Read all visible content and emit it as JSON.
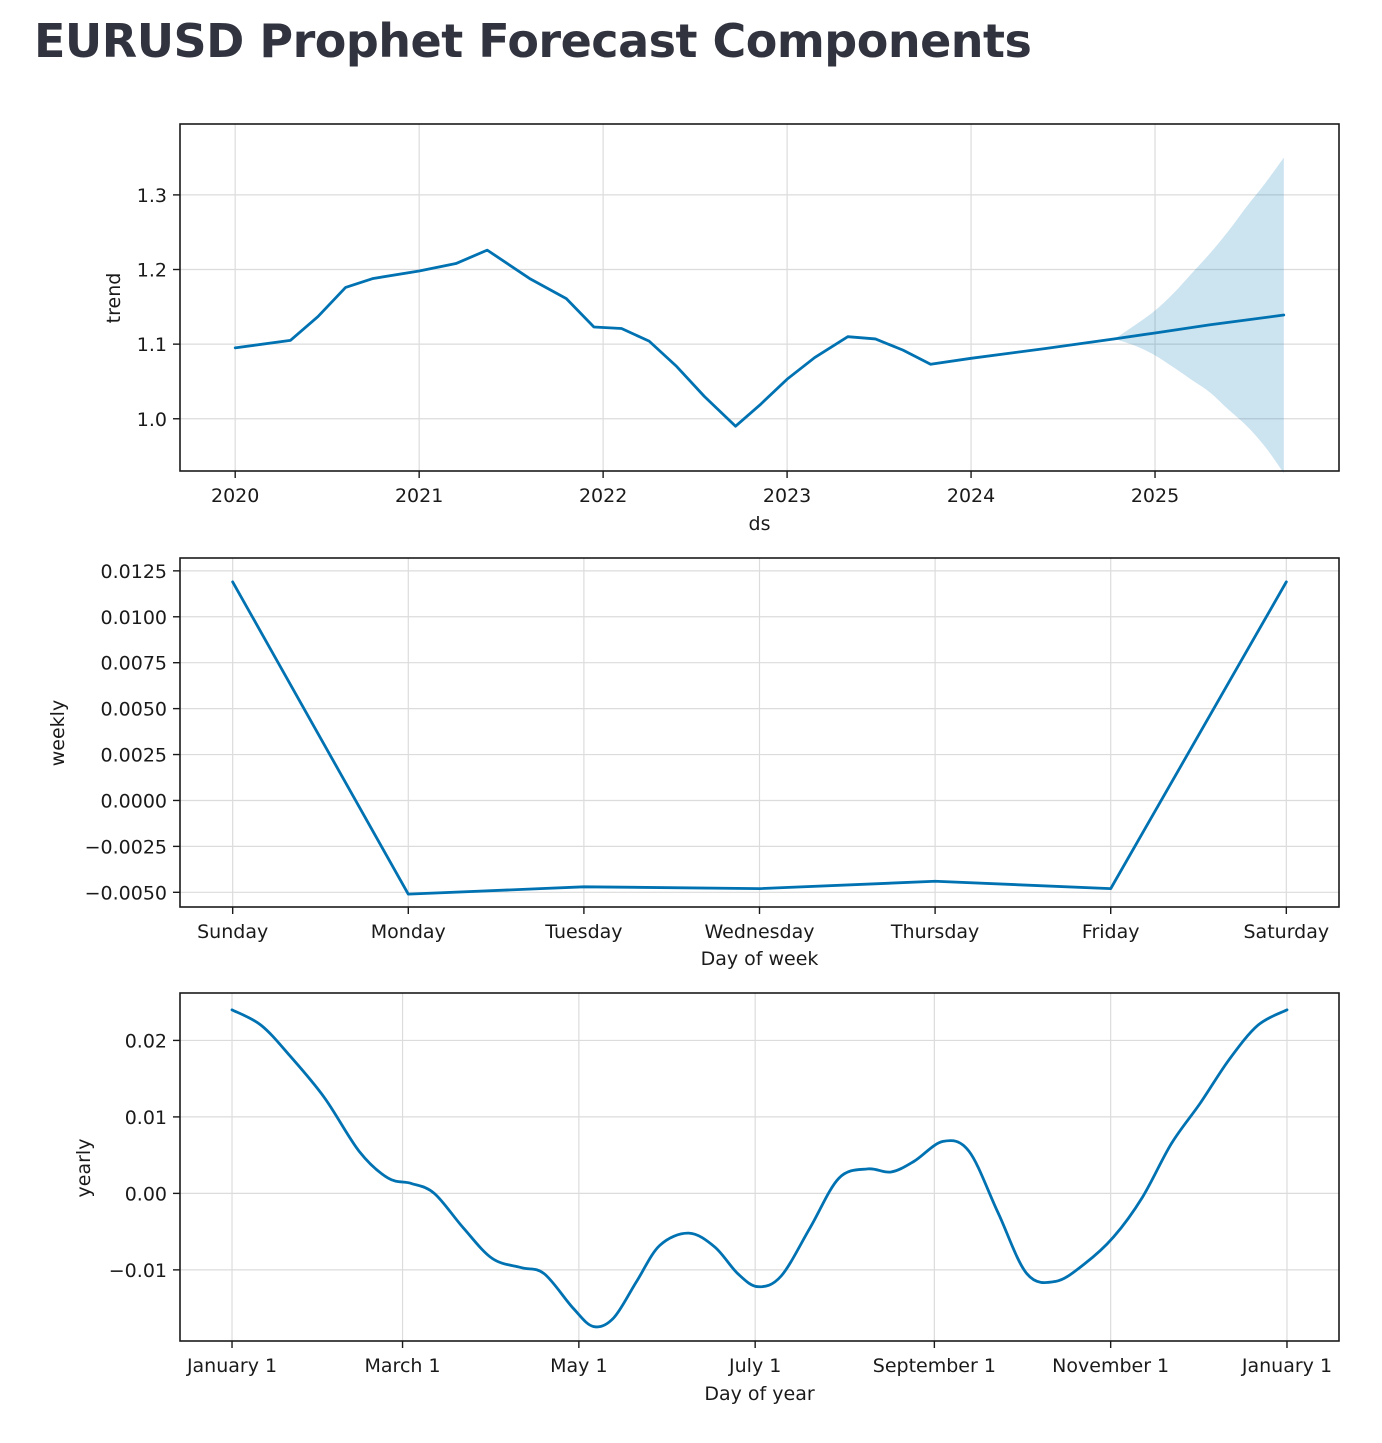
{
  "title": "EURUSD Prophet Forecast Components",
  "colors": {
    "line": "#0072b2",
    "band": "#0072b2",
    "grid": "#dcdcdc",
    "axes": "#1a1a1a"
  },
  "chart_data": [
    {
      "type": "line",
      "name": "trend",
      "xlabel": "ds",
      "ylabel": "trend",
      "xlim": [
        2019.7,
        2026.0
      ],
      "ylim": [
        0.93,
        1.395
      ],
      "grid": true,
      "xticks": [
        2020,
        2021,
        2022,
        2023,
        2024,
        2025
      ],
      "xtick_labels": [
        "2020",
        "2021",
        "2022",
        "2023",
        "2024",
        "2025"
      ],
      "yticks": [
        1.0,
        1.1,
        1.2,
        1.3
      ],
      "ytick_labels": [
        "1.0",
        "1.1",
        "1.2",
        "1.3"
      ],
      "series": [
        {
          "x": [
            2020.0,
            2020.3,
            2020.45,
            2020.6,
            2020.75,
            2021.0,
            2021.2,
            2021.37,
            2021.6,
            2021.8,
            2021.95,
            2022.1,
            2022.25,
            2022.4,
            2022.55,
            2022.72,
            2022.85,
            2023.0,
            2023.15,
            2023.33,
            2023.48,
            2023.63,
            2023.78,
            2024.0,
            2024.4,
            2024.78,
            2025.0,
            2025.3,
            2025.7
          ],
          "y": [
            1.095,
            1.105,
            1.137,
            1.176,
            1.188,
            1.198,
            1.208,
            1.226,
            1.188,
            1.161,
            1.123,
            1.121,
            1.104,
            1.07,
            1.03,
            0.99,
            1.018,
            1.053,
            1.082,
            1.11,
            1.107,
            1.092,
            1.073,
            1.081,
            1.094,
            1.107,
            1.115,
            1.126,
            1.139
          ]
        }
      ],
      "uncertainty_band": {
        "x": [
          2024.78,
          2024.9,
          2025.0,
          2025.1,
          2025.2,
          2025.3,
          2025.4,
          2025.5,
          2025.6,
          2025.7
        ],
        "lower": [
          1.107,
          1.097,
          1.085,
          1.069,
          1.052,
          1.035,
          1.012,
          0.99,
          0.962,
          0.927
        ],
        "upper": [
          1.107,
          1.127,
          1.145,
          1.168,
          1.195,
          1.222,
          1.252,
          1.285,
          1.316,
          1.35
        ]
      }
    },
    {
      "type": "line",
      "name": "weekly",
      "xlabel": "Day of week",
      "ylabel": "weekly",
      "categories": [
        "Sunday",
        "Monday",
        "Tuesday",
        "Wednesday",
        "Thursday",
        "Friday",
        "Saturday"
      ],
      "xlim": [
        -0.3,
        6.3
      ],
      "ylim": [
        -0.0058,
        0.0132
      ],
      "grid": true,
      "yticks": [
        -0.005,
        -0.0025,
        0.0,
        0.0025,
        0.005,
        0.0075,
        0.01,
        0.0125
      ],
      "ytick_labels": [
        "−0.0050",
        "−0.0025",
        "0.0000",
        "0.0025",
        "0.0050",
        "0.0075",
        "0.0100",
        "0.0125"
      ],
      "series": [
        {
          "values": [
            0.0119,
            -0.0051,
            -0.0047,
            -0.0048,
            -0.0044,
            -0.0048,
            0.0119
          ]
        }
      ]
    },
    {
      "type": "line",
      "name": "yearly",
      "xlabel": "Day of year",
      "ylabel": "yearly",
      "xlim": [
        -18,
        383
      ],
      "ylim": [
        -0.0193,
        0.0262
      ],
      "grid": true,
      "xticks": [
        0,
        59,
        120,
        181,
        243,
        304,
        365
      ],
      "xtick_labels": [
        "January 1",
        "March 1",
        "May 1",
        "July 1",
        "September 1",
        "November 1",
        "January 1"
      ],
      "yticks": [
        -0.01,
        0.0,
        0.01,
        0.02
      ],
      "ytick_labels": [
        "−0.01",
        "0.00",
        "0.01",
        "0.02"
      ],
      "series": [
        {
          "x": [
            0,
            10,
            20,
            32,
            44,
            54,
            62,
            70,
            80,
            90,
            100,
            108,
            118,
            125,
            132,
            140,
            148,
            158,
            167,
            175,
            182,
            190,
            200,
            210,
            220,
            228,
            236,
            246,
            255,
            265,
            275,
            285,
            295,
            305,
            315,
            325,
            335,
            345,
            355,
            365
          ],
          "y": [
            0.024,
            0.022,
            0.018,
            0.0125,
            0.0055,
            0.002,
            0.0013,
            0.0,
            -0.0045,
            -0.0085,
            -0.0097,
            -0.0105,
            -0.015,
            -0.0174,
            -0.0163,
            -0.0115,
            -0.0068,
            -0.0052,
            -0.007,
            -0.0105,
            -0.0122,
            -0.0108,
            -0.0045,
            0.002,
            0.0032,
            0.0028,
            0.0042,
            0.0068,
            0.0055,
            -0.0025,
            -0.0105,
            -0.0115,
            -0.0092,
            -0.0057,
            -0.0005,
            0.0065,
            0.0118,
            0.0175,
            0.022,
            0.024
          ]
        }
      ]
    }
  ]
}
